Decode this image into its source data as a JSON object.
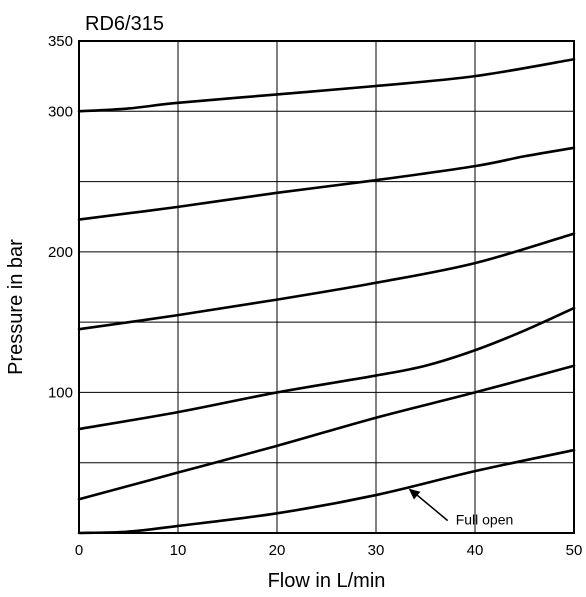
{
  "chart_data": {
    "type": "line",
    "title": "RD6/315",
    "xlabel": "Flow in L/min",
    "ylabel": "Pressure in bar",
    "xlim": [
      0,
      50
    ],
    "ylim": [
      0,
      350
    ],
    "grid": true,
    "x_ticks": [
      0,
      10,
      20,
      30,
      40,
      50
    ],
    "x_tick_labels": [
      "0",
      "10",
      "20",
      "30",
      "40",
      "50"
    ],
    "y_gridlines": [
      0,
      50,
      100,
      150,
      200,
      250,
      300,
      350
    ],
    "y_ticks": [
      100,
      200,
      300,
      350
    ],
    "y_tick_labels": [
      "100",
      "200",
      "300",
      "350"
    ],
    "series": [
      {
        "x": [
          0,
          5,
          10,
          20,
          30,
          40,
          50
        ],
        "values": [
          300,
          302,
          306,
          312,
          318,
          325,
          337
        ]
      },
      {
        "x": [
          0,
          10,
          20,
          30,
          40,
          45,
          50
        ],
        "values": [
          223,
          232,
          242,
          251,
          261,
          268,
          274
        ]
      },
      {
        "x": [
          0,
          10,
          20,
          30,
          40,
          50
        ],
        "values": [
          145,
          155,
          166,
          178,
          192,
          213
        ]
      },
      {
        "x": [
          0,
          10,
          20,
          30,
          35,
          40,
          45,
          50
        ],
        "values": [
          74,
          86,
          100,
          112,
          119,
          130,
          144,
          160
        ]
      },
      {
        "x": [
          0,
          10,
          20,
          30,
          40,
          50
        ],
        "values": [
          24,
          43,
          62,
          82,
          100,
          119
        ]
      },
      {
        "x": [
          0,
          5,
          10,
          20,
          30,
          40,
          50
        ],
        "values": [
          0,
          1,
          5,
          14,
          27,
          44,
          59
        ]
      }
    ],
    "annotations": [
      {
        "text": "Full open",
        "target": {
          "x": 33,
          "y": 33
        }
      }
    ]
  }
}
